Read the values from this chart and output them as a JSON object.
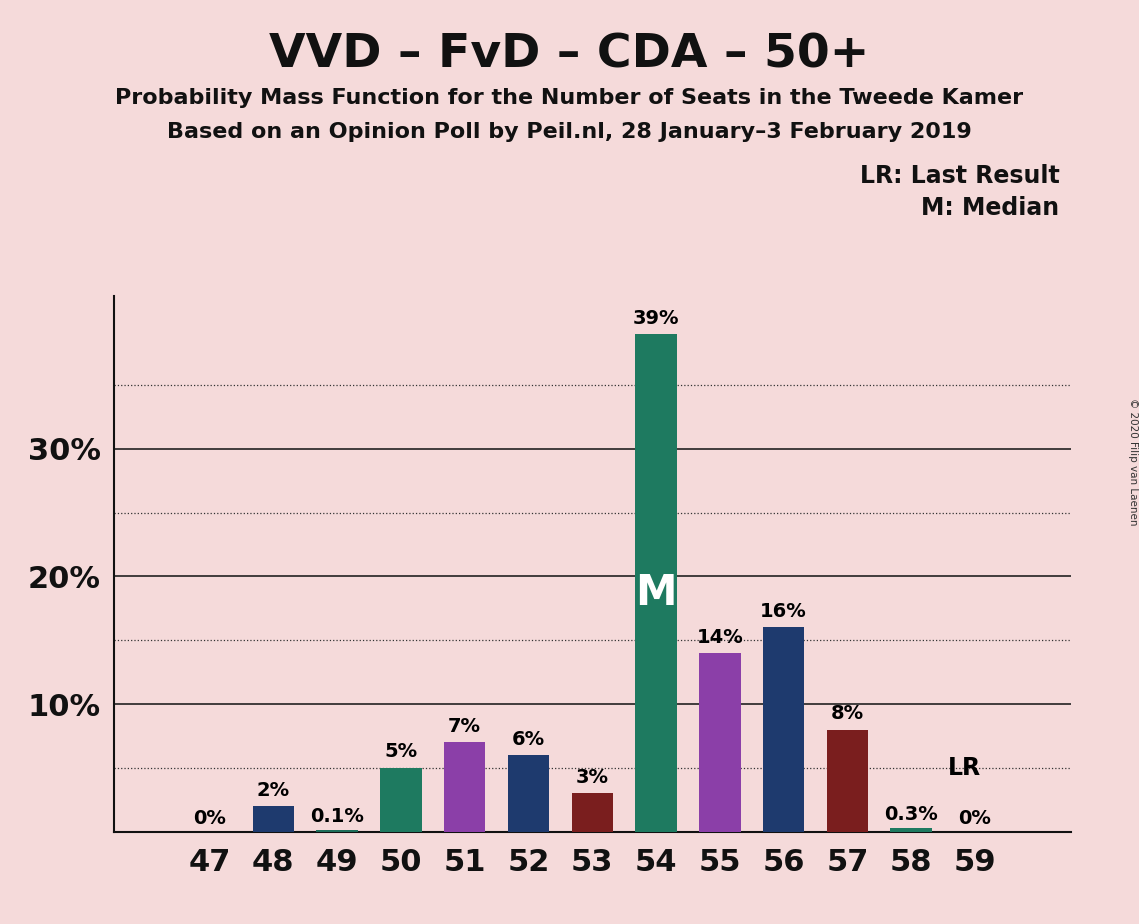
{
  "title": "VVD – FvD – CDA – 50+",
  "subtitle1": "Probability Mass Function for the Number of Seats in the Tweede Kamer",
  "subtitle2": "Based on an Opinion Poll by Peil.nl, 28 January–3 February 2019",
  "copyright": "© 2020 Filip van Laenen",
  "categories": [
    47,
    48,
    49,
    50,
    51,
    52,
    53,
    54,
    55,
    56,
    57,
    58,
    59
  ],
  "values": [
    0.0,
    2.0,
    0.1,
    5.0,
    7.0,
    6.0,
    3.0,
    39.0,
    14.0,
    16.0,
    8.0,
    0.3,
    0.0
  ],
  "labels": [
    "0%",
    "2%",
    "0.1%",
    "5%",
    "7%",
    "6%",
    "3%",
    "39%",
    "14%",
    "16%",
    "8%",
    "0.3%",
    "0%"
  ],
  "colors": [
    "#1e3a6e",
    "#1e3a6e",
    "#1e6e5a",
    "#1e7a60",
    "#8b3fa8",
    "#1e3a6e",
    "#7a1e1e",
    "#1e7a60",
    "#8b3fa8",
    "#1e3a6e",
    "#7a1e1e",
    "#1e7a60",
    "#1e7a60"
  ],
  "median_index": 7,
  "lr_index": 11,
  "lr_label": "LR",
  "median_label": "M",
  "legend_lr": "LR: Last Result",
  "legend_m": "M: Median",
  "background_color": "#f5dada",
  "ylim_max": 42,
  "ytick_positions": [
    10,
    20,
    30
  ],
  "ytick_labels": [
    "10%",
    "20%",
    "30%"
  ],
  "dotted_lines": [
    5,
    15,
    25,
    35
  ],
  "solid_lines": [
    10,
    20,
    30
  ],
  "bar_width": 0.65,
  "title_fontsize": 34,
  "subtitle_fontsize": 16,
  "axis_fontsize": 22,
  "label_fontsize": 14,
  "legend_fontsize": 17,
  "median_fontsize": 30
}
